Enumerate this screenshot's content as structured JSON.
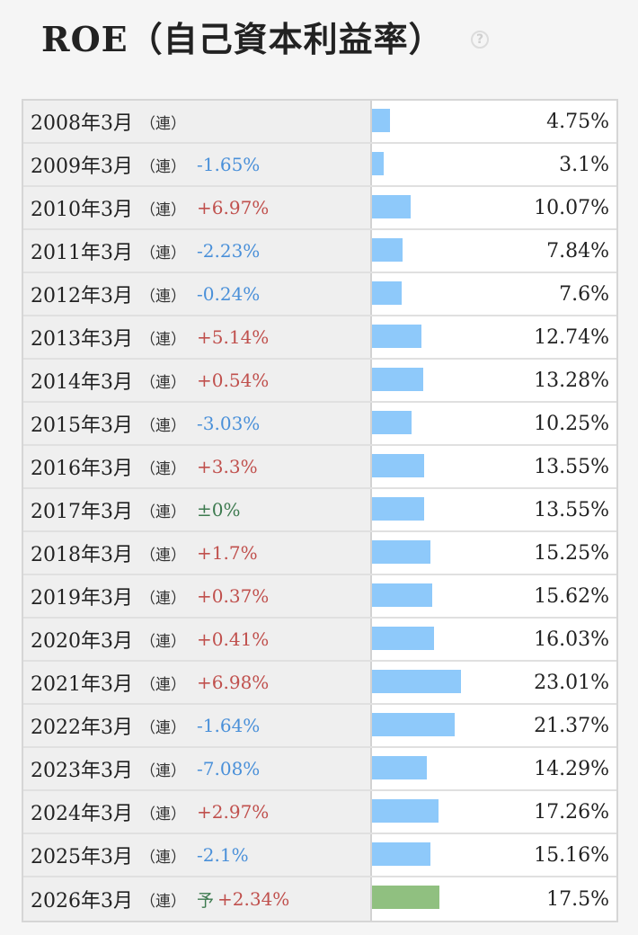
{
  "header": {
    "title": "ROE（自己資本利益率）",
    "help_glyph": "?"
  },
  "colors": {
    "bar": "#8ec9fa",
    "forecast_bar": "#90c080",
    "increase": "#c0504d",
    "decrease": "#4a90d9",
    "unchanged": "#3d7a4f"
  },
  "chart_data": {
    "type": "bar",
    "title": "ROE（自己資本利益率）",
    "unit": "%",
    "xlim": [
      0,
      35
    ],
    "rows": [
      {
        "period": "2008年3月",
        "basis": "（連）",
        "forecast": "",
        "change": "",
        "change_sign": "none",
        "value": 4.75,
        "value_label": "4.75%"
      },
      {
        "period": "2009年3月",
        "basis": "（連）",
        "forecast": "",
        "change": "-1.65%",
        "change_sign": "neg",
        "value": 3.1,
        "value_label": "3.1%"
      },
      {
        "period": "2010年3月",
        "basis": "（連）",
        "forecast": "",
        "change": "+6.97%",
        "change_sign": "pos",
        "value": 10.07,
        "value_label": "10.07%"
      },
      {
        "period": "2011年3月",
        "basis": "（連）",
        "forecast": "",
        "change": "-2.23%",
        "change_sign": "neg",
        "value": 7.84,
        "value_label": "7.84%"
      },
      {
        "period": "2012年3月",
        "basis": "（連）",
        "forecast": "",
        "change": "-0.24%",
        "change_sign": "neg",
        "value": 7.6,
        "value_label": "7.6%"
      },
      {
        "period": "2013年3月",
        "basis": "（連）",
        "forecast": "",
        "change": "+5.14%",
        "change_sign": "pos",
        "value": 12.74,
        "value_label": "12.74%"
      },
      {
        "period": "2014年3月",
        "basis": "（連）",
        "forecast": "",
        "change": "+0.54%",
        "change_sign": "pos",
        "value": 13.28,
        "value_label": "13.28%"
      },
      {
        "period": "2015年3月",
        "basis": "（連）",
        "forecast": "",
        "change": "-3.03%",
        "change_sign": "neg",
        "value": 10.25,
        "value_label": "10.25%"
      },
      {
        "period": "2016年3月",
        "basis": "（連）",
        "forecast": "",
        "change": "+3.3%",
        "change_sign": "pos",
        "value": 13.55,
        "value_label": "13.55%"
      },
      {
        "period": "2017年3月",
        "basis": "（連）",
        "forecast": "",
        "change": "±0%",
        "change_sign": "zero",
        "value": 13.55,
        "value_label": "13.55%"
      },
      {
        "period": "2018年3月",
        "basis": "（連）",
        "forecast": "",
        "change": "+1.7%",
        "change_sign": "pos",
        "value": 15.25,
        "value_label": "15.25%"
      },
      {
        "period": "2019年3月",
        "basis": "（連）",
        "forecast": "",
        "change": "+0.37%",
        "change_sign": "pos",
        "value": 15.62,
        "value_label": "15.62%"
      },
      {
        "period": "2020年3月",
        "basis": "（連）",
        "forecast": "",
        "change": "+0.41%",
        "change_sign": "pos",
        "value": 16.03,
        "value_label": "16.03%"
      },
      {
        "period": "2021年3月",
        "basis": "（連）",
        "forecast": "",
        "change": "+6.98%",
        "change_sign": "pos",
        "value": 23.01,
        "value_label": "23.01%"
      },
      {
        "period": "2022年3月",
        "basis": "（連）",
        "forecast": "",
        "change": "-1.64%",
        "change_sign": "neg",
        "value": 21.37,
        "value_label": "21.37%"
      },
      {
        "period": "2023年3月",
        "basis": "（連）",
        "forecast": "",
        "change": "-7.08%",
        "change_sign": "neg",
        "value": 14.29,
        "value_label": "14.29%"
      },
      {
        "period": "2024年3月",
        "basis": "（連）",
        "forecast": "",
        "change": "+2.97%",
        "change_sign": "pos",
        "value": 17.26,
        "value_label": "17.26%"
      },
      {
        "period": "2025年3月",
        "basis": "（連）",
        "forecast": "",
        "change": "-2.1%",
        "change_sign": "neg",
        "value": 15.16,
        "value_label": "15.16%"
      },
      {
        "period": "2026年3月",
        "basis": "（連）",
        "forecast": "予",
        "change": "+2.34%",
        "change_sign": "pos",
        "value": 17.5,
        "value_label": "17.5%"
      }
    ]
  }
}
